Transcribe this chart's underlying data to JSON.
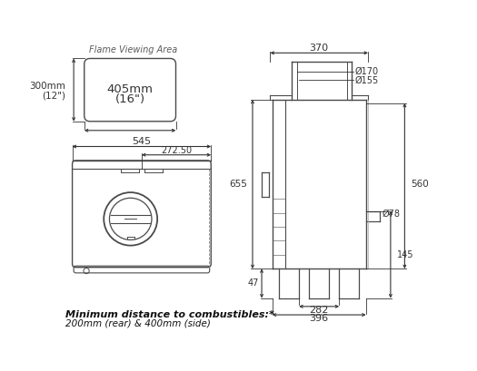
{
  "bg_color": "#ffffff",
  "line_color": "#4a4a4a",
  "dim_color": "#333333",
  "text_color": "#333333",
  "dims": {
    "dia170": "Ø170",
    "dia155": "Ø155",
    "dia78": "Ø78"
  },
  "footer_bold": "Minimum distance to combustibles:*",
  "footer_normal": "200mm (rear) & 400mm (side)"
}
